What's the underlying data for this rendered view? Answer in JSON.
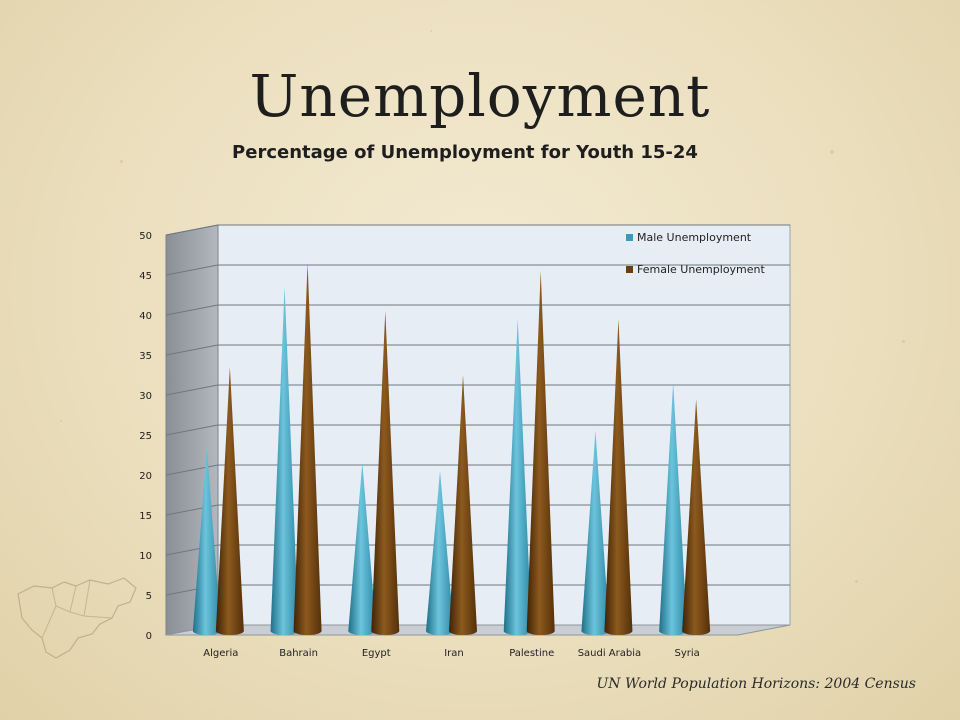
{
  "slide": {
    "title": "Unemployment",
    "source": "UN World Population Horizons: 2004 Census"
  },
  "chart_data": {
    "type": "bar",
    "subtype": "3d-cone",
    "title": "Percentage of Unemployment for Youth 15-24",
    "xlabel": "",
    "ylabel": "",
    "categories": [
      "Algeria",
      "Bahrain",
      "Egypt",
      "Iran",
      "Palestine",
      "Saudi Arabia",
      "Syria"
    ],
    "series": [
      {
        "name": "Male Unemployment",
        "values": [
          23,
          43,
          21,
          20,
          39,
          25,
          31
        ],
        "color": "#3a9ab8"
      },
      {
        "name": "Female Unemployment",
        "values": [
          33,
          46,
          40,
          32,
          45,
          39,
          29
        ],
        "color": "#6b3e0e"
      }
    ],
    "ylim": [
      0,
      50
    ],
    "yticks": [
      0,
      5,
      10,
      15,
      20,
      25,
      30,
      35,
      40,
      45,
      50
    ],
    "grid": true,
    "legend": "top-right"
  }
}
